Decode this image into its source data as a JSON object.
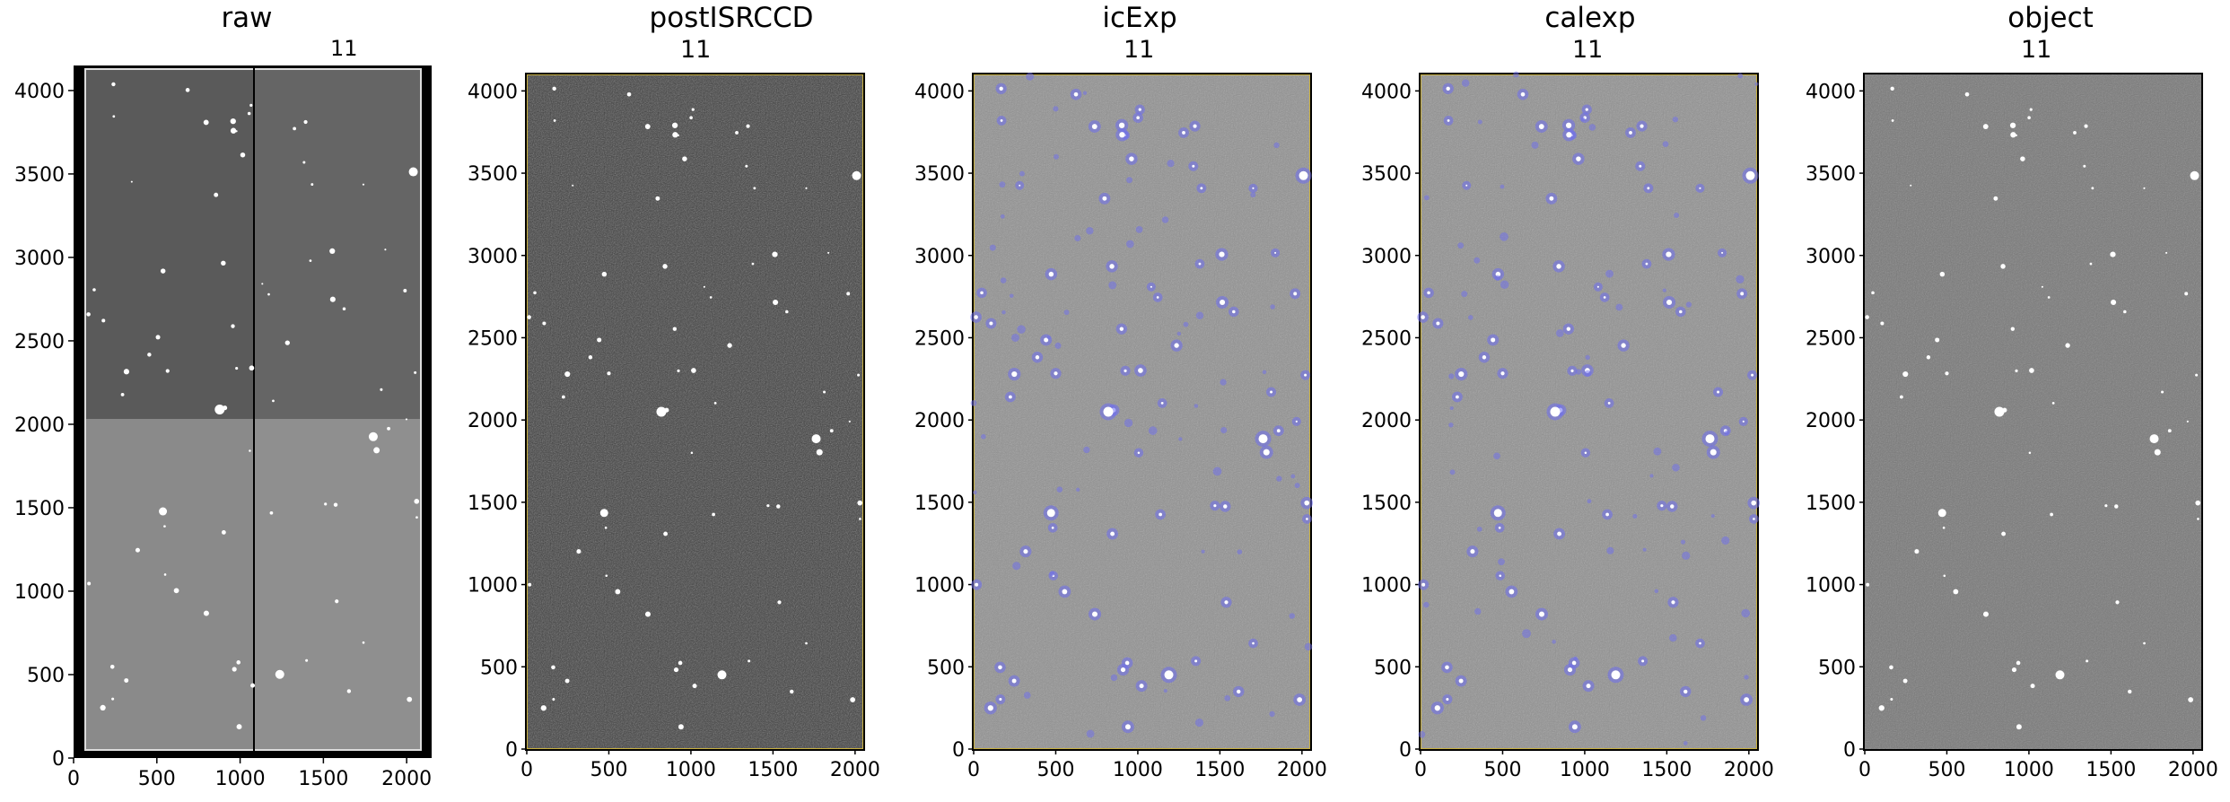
{
  "figure": {
    "panels": [
      {
        "key": "raw",
        "title": "raw",
        "ccd": "11"
      },
      {
        "key": "postISRCCD",
        "title": "postISRCCD",
        "ccd": "11"
      },
      {
        "key": "icExp",
        "title": "icExp",
        "ccd": "11"
      },
      {
        "key": "calexp",
        "title": "calexp",
        "ccd": "11"
      },
      {
        "key": "object",
        "title": "object",
        "ccd": "11"
      }
    ],
    "y_ticks": [
      "0",
      "500",
      "1000",
      "1500",
      "2000",
      "2500",
      "3000",
      "3500",
      "4000"
    ],
    "x_ticks": [
      "0",
      "500",
      "1000",
      "1500",
      "2000"
    ],
    "colors": {
      "background_gray_raw_top": "#5a5a5a",
      "background_gray_raw_bottom": "#8a8a8a",
      "postisr_bg": "#3a3a3a",
      "icexp_bg": "#8e8e8e",
      "calexp_bg": "#8a8a8a",
      "object_bg": "#7a7a7a",
      "mask_overlay": "#6d6df0",
      "edge_border": "#c8b040"
    }
  }
}
